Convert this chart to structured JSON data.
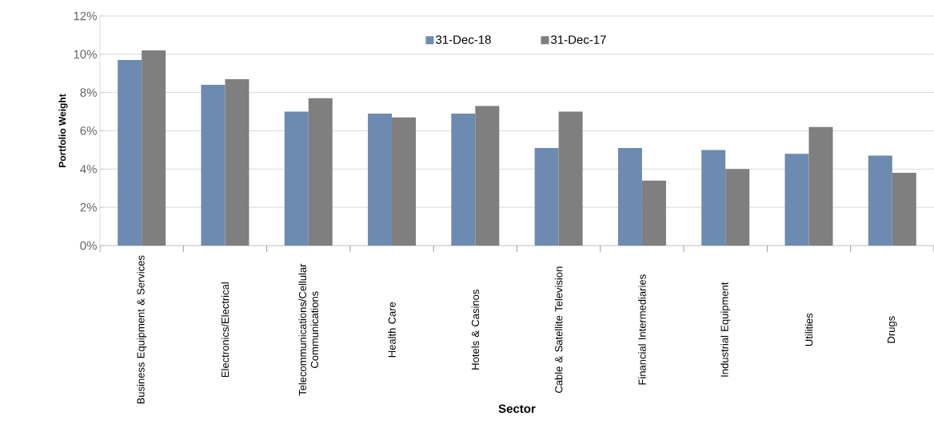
{
  "chart_data": {
    "type": "bar",
    "xlabel": "Sector",
    "ylabel": "Portfolio Weight",
    "categories": [
      "Business Equipment & Services",
      "Electronics/Electrical",
      "Telecommunications/Cellular Communications",
      "Health Care",
      "Hotels & Casinos",
      "Cable & Satellite Television",
      "Financial Intermediaries",
      "Industrial Equipment",
      "Utilities",
      "Drugs"
    ],
    "series": [
      {
        "name": "31-Dec-18",
        "color": "#6d8bb0",
        "values": [
          9.7,
          8.4,
          7.0,
          6.9,
          6.9,
          5.1,
          5.1,
          5.0,
          4.8,
          4.7
        ]
      },
      {
        "name": "31-Dec-17",
        "color": "#7f7f7f",
        "values": [
          10.2,
          8.7,
          7.7,
          6.7,
          7.3,
          7.0,
          3.4,
          4.0,
          6.2,
          3.8
        ]
      }
    ],
    "ylim": [
      0,
      12
    ],
    "yticks": [
      {
        "value": 0,
        "label": "0%"
      },
      {
        "value": 2,
        "label": "2%"
      },
      {
        "value": 4,
        "label": "4%"
      },
      {
        "value": 6,
        "label": "6%"
      },
      {
        "value": 8,
        "label": "8%"
      },
      {
        "value": 10,
        "label": "10%"
      },
      {
        "value": 12,
        "label": "12%"
      }
    ],
    "grid": "y",
    "legend": "top"
  }
}
